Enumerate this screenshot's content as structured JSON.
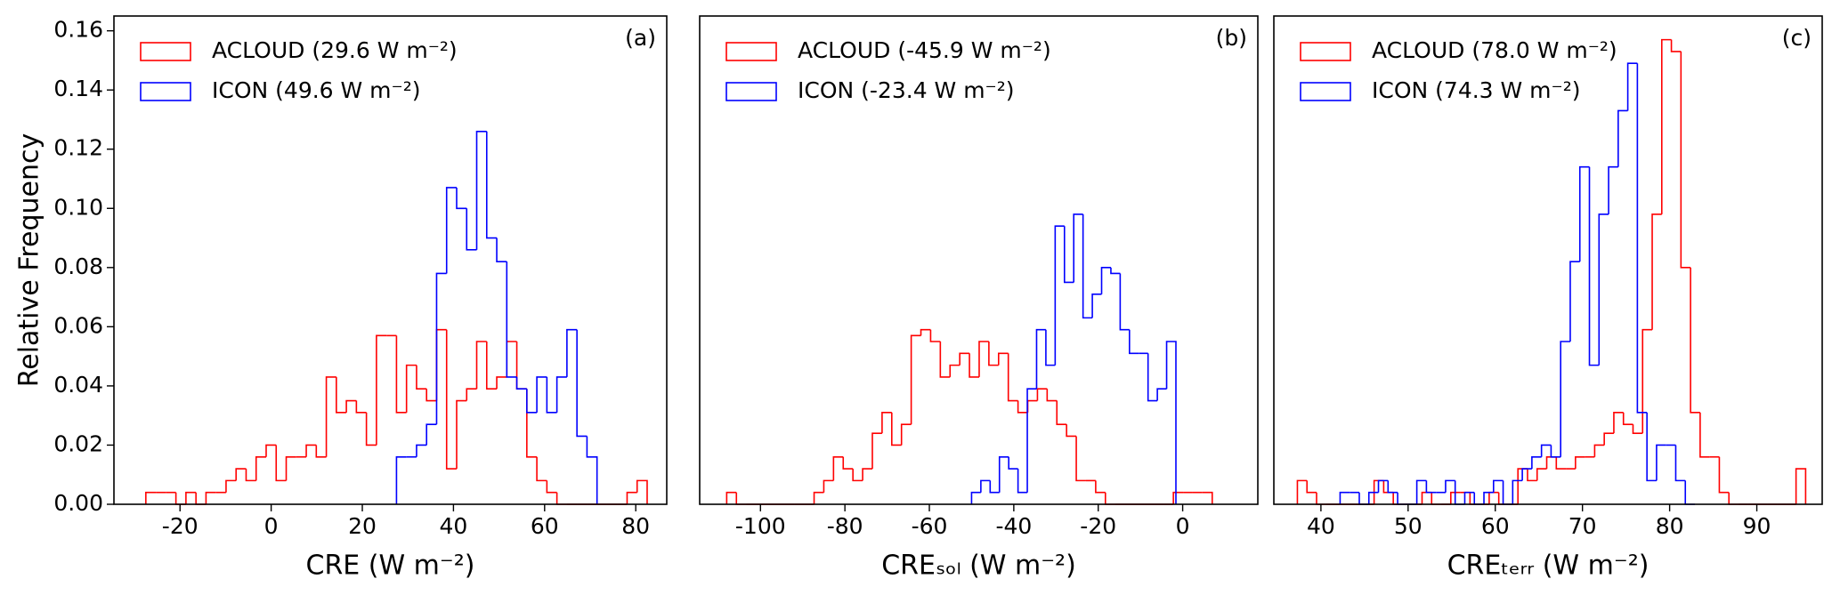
{
  "chart_data": [
    {
      "type": "histogram",
      "panel_label": "(a)",
      "ylabel": "Relative Frequency",
      "xlabel": "CRE (W m⁻²)",
      "xlim": [
        -34.5,
        86.8
      ],
      "xticks": [
        -20,
        0,
        20,
        40,
        60,
        80
      ],
      "ylim": [
        0,
        0.165
      ],
      "yticks": [
        {
          "value": 0,
          "label": "0.00"
        },
        {
          "value": 0.02,
          "label": "0.02"
        },
        {
          "value": 0.04,
          "label": "0.04"
        },
        {
          "value": 0.06,
          "label": "0.06"
        },
        {
          "value": 0.08,
          "label": "0.08"
        },
        {
          "value": 0.1,
          "label": "0.10"
        },
        {
          "value": 0.12,
          "label": "0.12"
        },
        {
          "value": 0.14,
          "label": "0.14"
        },
        {
          "value": 0.16,
          "label": "0.16"
        }
      ],
      "legend": "upper left",
      "series": [
        {
          "name": "ACLOUD (29.6 W m⁻²)",
          "color": "#ff0000",
          "bins": [
            -27.5,
            -25.3,
            -23.1,
            -20.9,
            -18.7,
            -16.5,
            -14.3,
            -12.1,
            -9.9,
            -7.7,
            -5.5,
            -3.3,
            -1.1,
            1.1,
            3.3,
            5.5,
            7.7,
            9.9,
            12.1,
            14.3,
            16.5,
            18.7,
            20.9,
            23.1,
            25.3,
            27.5,
            29.7,
            31.9,
            34.1,
            36.3,
            38.5,
            40.7,
            42.9,
            45.1,
            47.3,
            49.5,
            51.7,
            53.9,
            56.1,
            58.3,
            60.5,
            62.7,
            64.9,
            67.1,
            69.3,
            71.5,
            73.7,
            75.9,
            78.1,
            80.3,
            82.5
          ],
          "values": [
            0.004,
            0.004,
            0.004,
            0,
            0.004,
            0,
            0.004,
            0.004,
            0.008,
            0.012,
            0.008,
            0.016,
            0.02,
            0.008,
            0.016,
            0.016,
            0.02,
            0.016,
            0.043,
            0.031,
            0.035,
            0.031,
            0.02,
            0.057,
            0.057,
            0.031,
            0.047,
            0.039,
            0.035,
            0.059,
            0.012,
            0.035,
            0.039,
            0.055,
            0.039,
            0.043,
            0.055,
            0.039,
            0.016,
            0.008,
            0.004,
            0,
            0,
            0,
            0,
            0,
            0,
            0,
            0.004,
            0.008
          ]
        },
        {
          "name": "ICON (49.6 W m⁻²)",
          "color": "#0000ff",
          "bins": [
            27.5,
            29.7,
            31.9,
            34.1,
            36.3,
            38.5,
            40.7,
            42.9,
            45.1,
            47.3,
            49.5,
            51.7,
            53.9,
            56.1,
            58.3,
            60.5,
            62.7,
            64.9,
            67.1,
            69.3,
            71.5
          ],
          "values": [
            0.016,
            0.016,
            0.02,
            0.027,
            0.078,
            0.107,
            0.1,
            0.086,
            0.126,
            0.09,
            0.082,
            0.043,
            0.039,
            0.031,
            0.043,
            0.031,
            0.043,
            0.059,
            0.023,
            0.016
          ]
        }
      ]
    },
    {
      "type": "histogram",
      "panel_label": "(b)",
      "xlabel": "CREₛₒₗ (W m⁻²)",
      "xlim": [
        -114.4,
        17.8
      ],
      "xticks": [
        -100,
        -80,
        -60,
        -40,
        -20,
        0
      ],
      "ylim": [
        0,
        0.165
      ],
      "legend": "upper left",
      "series": [
        {
          "name": "ACLOUD (-45.9 W m⁻²)",
          "color": "#ff0000",
          "bins": [
            -108,
            -105.7,
            -103.4,
            -101.1,
            -98.8,
            -96.5,
            -94.2,
            -91.9,
            -89.6,
            -87.3,
            -85,
            -82.7,
            -80.4,
            -78.1,
            -75.8,
            -73.5,
            -71.2,
            -68.9,
            -66.6,
            -64.3,
            -62,
            -59.7,
            -57.4,
            -55.1,
            -52.8,
            -50.5,
            -48.2,
            -45.9,
            -43.6,
            -41.3,
            -39,
            -36.7,
            -34.4,
            -32.1,
            -29.8,
            -27.5,
            -25.2,
            -22.9,
            -20.6,
            -18.3,
            -16,
            -13.7,
            -11.4,
            -9.1,
            -6.8,
            -4.5,
            -2.2,
            0.1,
            2.4,
            4.7,
            7
          ],
          "values": [
            0.004,
            0,
            0,
            0,
            0,
            0,
            0,
            0,
            0,
            0.004,
            0.008,
            0.016,
            0.012,
            0.008,
            0.012,
            0.024,
            0.031,
            0.02,
            0.027,
            0.057,
            0.059,
            0.055,
            0.043,
            0.047,
            0.051,
            0.043,
            0.055,
            0.047,
            0.051,
            0.035,
            0.031,
            0.035,
            0.039,
            0.035,
            0.027,
            0.023,
            0.008,
            0.008,
            0.004,
            0,
            0,
            0,
            0,
            0,
            0,
            0,
            0.004,
            0.004,
            0.004,
            0.004
          ]
        },
        {
          "name": "ICON (-23.4 W m⁻²)",
          "color": "#0000ff",
          "bins": [
            -50,
            -47.8,
            -45.6,
            -43.4,
            -41.2,
            -39,
            -36.8,
            -34.6,
            -32.4,
            -30.2,
            -28,
            -25.8,
            -23.6,
            -21.4,
            -19.2,
            -17,
            -14.8,
            -12.6,
            -10.4,
            -8.2,
            -6,
            -3.8,
            -1.6
          ],
          "values": [
            0.004,
            0.008,
            0.004,
            0.016,
            0.012,
            0.004,
            0.039,
            0.059,
            0.047,
            0.094,
            0.075,
            0.098,
            0.063,
            0.071,
            0.08,
            0.078,
            0.059,
            0.051,
            0.051,
            0.035,
            0.039,
            0.055
          ]
        }
      ]
    },
    {
      "type": "histogram",
      "panel_label": "(c)",
      "xlabel": "CREₜₑᵣᵣ (W m⁻²)",
      "xlim": [
        34.6,
        97.5
      ],
      "xticks": [
        40,
        50,
        60,
        70,
        80,
        90
      ],
      "ylim": [
        0,
        0.165
      ],
      "legend": "upper left",
      "series": [
        {
          "name": "ACLOUD (78.0 W m⁻²)",
          "color": "#ff0000",
          "bins": [
            37.3,
            38.4,
            39.5,
            40.6,
            41.7,
            42.8,
            43.9,
            45,
            46.1,
            47.2,
            48.3,
            49.4,
            50.5,
            51.6,
            52.7,
            53.8,
            54.9,
            56,
            57.1,
            58.2,
            59.3,
            60.4,
            61.5,
            62.6,
            63.7,
            64.8,
            65.9,
            67,
            68.1,
            69.2,
            70.3,
            71.4,
            72.5,
            73.6,
            74.7,
            75.8,
            76.9,
            78,
            79.1,
            80.2,
            81.3,
            82.4,
            83.5,
            84.6,
            85.7,
            86.8,
            87.9,
            89,
            90.1,
            91.2,
            92.3,
            93.4,
            94.5,
            95.6
          ],
          "values": [
            0.008,
            0.004,
            0,
            0,
            0,
            0,
            0,
            0,
            0.008,
            0.004,
            0,
            0,
            0,
            0.004,
            0,
            0,
            0.004,
            0.004,
            0,
            0,
            0.004,
            0,
            0,
            0.012,
            0.008,
            0.012,
            0.016,
            0.012,
            0.012,
            0.016,
            0.016,
            0.02,
            0.024,
            0.031,
            0.027,
            0.024,
            0.059,
            0.098,
            0.157,
            0.153,
            0.08,
            0.031,
            0.016,
            0.016,
            0.004,
            0,
            0,
            0,
            0,
            0,
            0,
            0,
            0.012
          ]
        },
        {
          "name": "ICON (74.3 W m⁻²)",
          "color": "#0000ff",
          "bins": [
            42.2,
            43.3,
            44.4,
            45.5,
            46.6,
            47.7,
            48.8,
            49.9,
            51,
            52.1,
            53.2,
            54.3,
            55.4,
            56.5,
            57.6,
            58.7,
            59.8,
            60.9,
            62,
            63.1,
            64.2,
            65.3,
            66.4,
            67.5,
            68.6,
            69.7,
            70.8,
            71.9,
            73,
            74.1,
            75.2,
            76.3,
            77.4,
            78.5,
            79.6,
            80.7,
            81.8,
            82.9
          ],
          "values": [
            0.004,
            0.004,
            0,
            0.004,
            0.008,
            0.004,
            0,
            0,
            0.008,
            0.004,
            0.004,
            0.008,
            0,
            0.004,
            0,
            0.004,
            0.008,
            0,
            0.008,
            0.012,
            0.016,
            0.02,
            0.016,
            0.055,
            0.082,
            0.114,
            0.047,
            0.098,
            0.114,
            0.133,
            0.149,
            0.031,
            0.008,
            0.02,
            0.02,
            0.008,
            0
          ]
        }
      ]
    }
  ]
}
